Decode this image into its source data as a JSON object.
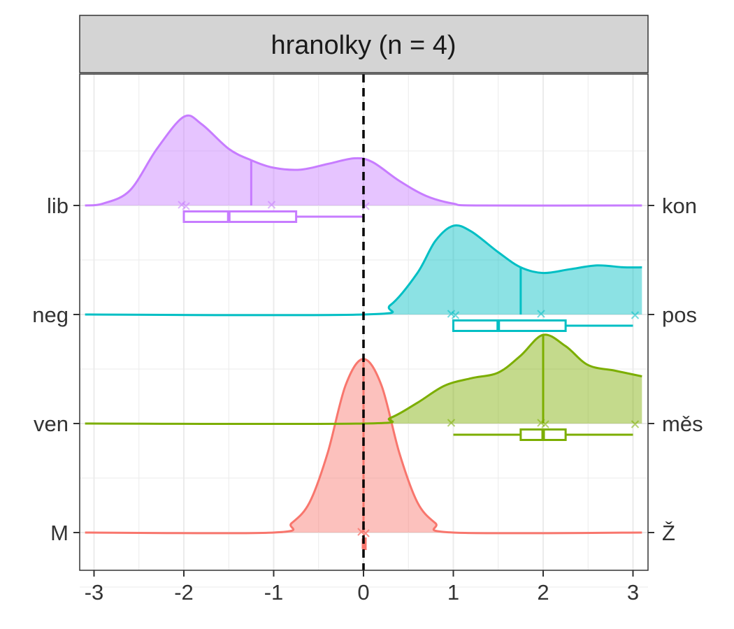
{
  "chart_data": {
    "type": "ridgeline-density",
    "title": "hranolky (n = 4)",
    "xlabel": "",
    "ylabel": "",
    "xlim": [
      -3.1,
      3.1
    ],
    "x_ticks": [
      "-3",
      "-2",
      "-1",
      "0",
      "1",
      "2",
      "3"
    ],
    "reference_line_x": 0,
    "grid": true,
    "rows": [
      {
        "left_label": "M",
        "right_label": "Ž",
        "color": "#F8766D",
        "points": [
          0,
          0,
          0,
          0
        ],
        "box": {
          "min": 0,
          "q1": 0,
          "median": 0,
          "q3": 0,
          "max": 0
        },
        "mean": 0,
        "density": [
          [
            -3.1,
            0
          ],
          [
            -1.0,
            0
          ],
          [
            -0.8,
            0.05
          ],
          [
            -0.6,
            0.16
          ],
          [
            -0.4,
            0.42
          ],
          [
            -0.2,
            0.78
          ],
          [
            0,
            0.92
          ],
          [
            0.2,
            0.78
          ],
          [
            0.4,
            0.42
          ],
          [
            0.6,
            0.16
          ],
          [
            0.8,
            0.05
          ],
          [
            1.0,
            0
          ],
          [
            3.1,
            0
          ]
        ]
      },
      {
        "left_label": "ven",
        "right_label": "měs",
        "color": "#7CAE00",
        "points": [
          1,
          2,
          2,
          3
        ],
        "box": {
          "min": 1,
          "q1": 1.75,
          "median": 2,
          "q3": 2.25,
          "max": 3
        },
        "mean": 2,
        "density": [
          [
            -3.1,
            0
          ],
          [
            0,
            0
          ],
          [
            0.3,
            0.03
          ],
          [
            0.6,
            0.11
          ],
          [
            0.9,
            0.2
          ],
          [
            1.2,
            0.24
          ],
          [
            1.5,
            0.27
          ],
          [
            1.75,
            0.36
          ],
          [
            2.0,
            0.47
          ],
          [
            2.25,
            0.41
          ],
          [
            2.5,
            0.31
          ],
          [
            2.8,
            0.28
          ],
          [
            3.1,
            0.25
          ]
        ]
      },
      {
        "left_label": "neg",
        "right_label": "pos",
        "color": "#00BFC4",
        "points": [
          1,
          1,
          2,
          3
        ],
        "box": {
          "min": 1,
          "q1": 1,
          "median": 1.5,
          "q3": 2.25,
          "max": 3
        },
        "mean": 1.75,
        "density": [
          [
            -3.1,
            0
          ],
          [
            0,
            0
          ],
          [
            0.3,
            0.05
          ],
          [
            0.6,
            0.22
          ],
          [
            0.8,
            0.39
          ],
          [
            1.0,
            0.47
          ],
          [
            1.2,
            0.44
          ],
          [
            1.5,
            0.33
          ],
          [
            1.75,
            0.25
          ],
          [
            2.0,
            0.22
          ],
          [
            2.3,
            0.24
          ],
          [
            2.6,
            0.26
          ],
          [
            2.9,
            0.25
          ],
          [
            3.1,
            0.25
          ]
        ]
      },
      {
        "left_label": "lib",
        "right_label": "kon",
        "color": "#C77CFF",
        "points": [
          -2,
          -2,
          -1,
          0
        ],
        "box": {
          "min": -2,
          "q1": -2,
          "median": -1.5,
          "q3": -0.75,
          "max": 0
        },
        "mean": -1.25,
        "density": [
          [
            -3.1,
            0
          ],
          [
            -2.9,
            0.01
          ],
          [
            -2.6,
            0.08
          ],
          [
            -2.3,
            0.3
          ],
          [
            -2.0,
            0.47
          ],
          [
            -1.8,
            0.43
          ],
          [
            -1.5,
            0.3
          ],
          [
            -1.25,
            0.24
          ],
          [
            -1.0,
            0.2
          ],
          [
            -0.7,
            0.19
          ],
          [
            -0.4,
            0.22
          ],
          [
            -0.1,
            0.25
          ],
          [
            0.1,
            0.23
          ],
          [
            0.4,
            0.13
          ],
          [
            0.7,
            0.05
          ],
          [
            1.0,
            0.01
          ],
          [
            1.3,
            0
          ],
          [
            3.1,
            0
          ]
        ]
      }
    ]
  }
}
